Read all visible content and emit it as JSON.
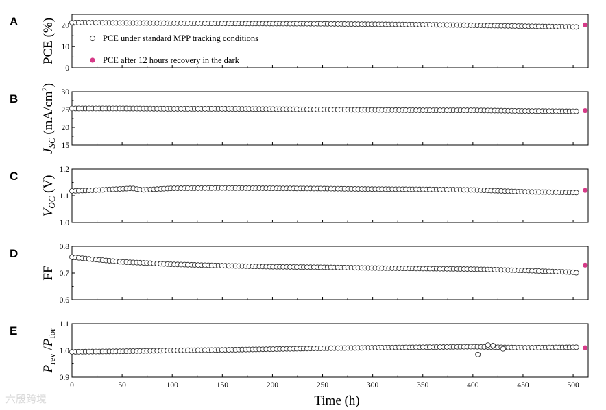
{
  "chart_data": [
    {
      "type": "scatter",
      "panel": "A",
      "ylabel": "PCE (%)",
      "ylim": [
        0,
        25
      ],
      "yticks": [
        "0",
        "10",
        "20"
      ],
      "ytick_values": [
        0,
        10,
        20
      ],
      "xlim": [
        0,
        515
      ],
      "series": [
        {
          "name": "PCE under standard MPP tracking conditions",
          "marker": "open-circle",
          "x": [
            0,
            50,
            100,
            150,
            200,
            250,
            300,
            350,
            400,
            450,
            505
          ],
          "y": [
            21.2,
            21.0,
            20.9,
            20.8,
            20.7,
            20.6,
            20.4,
            20.2,
            19.9,
            19.5,
            19.1
          ],
          "outliers": []
        },
        {
          "name": "PCE after 12 hours recovery in the dark",
          "marker": "filled-circle",
          "x": [
            512
          ],
          "y": [
            20.1
          ]
        }
      ]
    },
    {
      "type": "scatter",
      "panel": "B",
      "ylabel": "J_SC (mA/cm²)",
      "ylim": [
        15,
        30
      ],
      "yticks": [
        "15",
        "20",
        "25",
        "30"
      ],
      "ytick_values": [
        15,
        20,
        25,
        30
      ],
      "xlim": [
        0,
        515
      ],
      "series": [
        {
          "marker": "open-circle",
          "x": [
            0,
            50,
            100,
            150,
            200,
            250,
            300,
            350,
            400,
            450,
            505
          ],
          "y": [
            25.3,
            25.3,
            25.2,
            25.2,
            25.1,
            25.0,
            24.9,
            24.8,
            24.8,
            24.6,
            24.5
          ],
          "outliers": []
        },
        {
          "marker": "filled-circle",
          "x": [
            512
          ],
          "y": [
            24.7
          ]
        }
      ]
    },
    {
      "type": "scatter",
      "panel": "C",
      "ylabel": "V_OC (V)",
      "ylim": [
        1.0,
        1.2
      ],
      "yticks": [
        "1.0",
        "1.1",
        "1.2"
      ],
      "ytick_values": [
        1.0,
        1.1,
        1.2
      ],
      "xlim": [
        0,
        515
      ],
      "series": [
        {
          "marker": "open-circle",
          "x": [
            0,
            30,
            60,
            70,
            100,
            150,
            200,
            250,
            300,
            350,
            400,
            450,
            505
          ],
          "y": [
            1.118,
            1.122,
            1.128,
            1.122,
            1.128,
            1.129,
            1.128,
            1.127,
            1.125,
            1.124,
            1.122,
            1.115,
            1.112
          ],
          "outliers": []
        },
        {
          "marker": "filled-circle",
          "x": [
            512
          ],
          "y": [
            1.12
          ]
        }
      ]
    },
    {
      "type": "scatter",
      "panel": "D",
      "ylabel": "FF",
      "ylim": [
        0.6,
        0.8
      ],
      "yticks": [
        "0.6",
        "0.7",
        "0.8"
      ],
      "ytick_values": [
        0.6,
        0.7,
        0.8
      ],
      "xlim": [
        0,
        515
      ],
      "series": [
        {
          "marker": "open-circle",
          "x": [
            0,
            20,
            50,
            100,
            150,
            200,
            250,
            300,
            350,
            400,
            450,
            500,
            505
          ],
          "y": [
            0.76,
            0.752,
            0.742,
            0.733,
            0.728,
            0.724,
            0.722,
            0.719,
            0.717,
            0.715,
            0.71,
            0.703,
            0.7
          ],
          "outliers": []
        },
        {
          "marker": "filled-circle",
          "x": [
            512
          ],
          "y": [
            0.73
          ]
        }
      ]
    },
    {
      "type": "scatter",
      "panel": "E",
      "ylabel": "P_rev / P_for",
      "ylim": [
        0.9,
        1.1
      ],
      "yticks": [
        "0.9",
        "1.0",
        "1.1"
      ],
      "ytick_values": [
        0.9,
        1.0,
        1.1
      ],
      "xlim": [
        0,
        515
      ],
      "xlabel": "Time (h)",
      "xticks": [
        "0",
        "50",
        "100",
        "150",
        "200",
        "250",
        "300",
        "350",
        "400",
        "450",
        "500"
      ],
      "xtick_values": [
        0,
        50,
        100,
        150,
        200,
        250,
        300,
        350,
        400,
        450,
        500
      ],
      "series": [
        {
          "marker": "open-circle",
          "x": [
            0,
            50,
            100,
            150,
            200,
            250,
            300,
            350,
            400,
            450,
            505
          ],
          "y": [
            0.995,
            0.997,
            1.0,
            1.002,
            1.005,
            1.008,
            1.01,
            1.012,
            1.014,
            1.01,
            1.012
          ],
          "outliers": [
            [
              405,
              0.985
            ],
            [
              415,
              1.02
            ],
            [
              420,
              1.018
            ],
            [
              430,
              1.006
            ]
          ]
        },
        {
          "marker": "filled-circle",
          "x": [
            512
          ],
          "y": [
            1.01
          ]
        }
      ]
    }
  ],
  "legend": {
    "open_label": "PCE under standard MPP tracking conditions",
    "filled_label": "PCE after 12 hours recovery in the dark"
  },
  "colors": {
    "recovery": "#d63a88",
    "marker_edge": "#333333"
  },
  "watermark": "六殷跨境"
}
